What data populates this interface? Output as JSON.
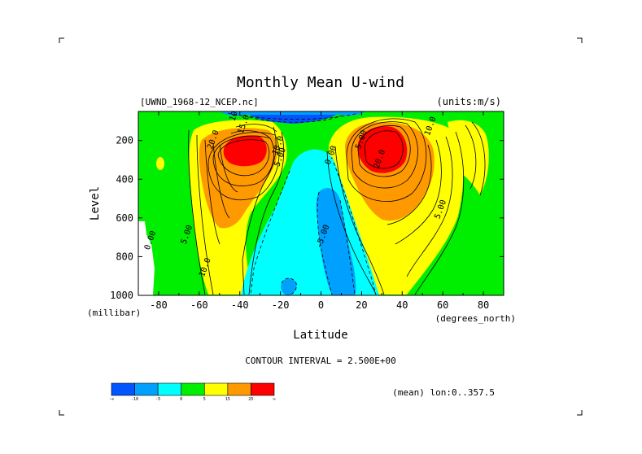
{
  "chart_data": {
    "type": "contour",
    "title": "Monthly Mean U-wind",
    "dataset_label": "[UWND_1968-12_NCEP.nc]",
    "units_label": "(units:m/s)",
    "xlabel": "Latitude",
    "xunit": "(degrees_north)",
    "ylabel": "Level",
    "yunit": "(millibar)",
    "xlim": [
      -90,
      90
    ],
    "ylim": [
      1000,
      50
    ],
    "y_inverted": true,
    "x_ticks": [
      -80,
      -60,
      -40,
      -20,
      0,
      20,
      40,
      60,
      80
    ],
    "y_ticks": [
      200,
      400,
      600,
      800,
      1000
    ],
    "contour_interval_text": "CONTOUR INTERVAL = 2.500E+00",
    "contour_interval": 2.5,
    "subset_text": "(mean) lon:0..357.5",
    "contour_labels": [
      {
        "text": "10.0",
        "lat": -41,
        "lev": 55
      },
      {
        "text": "15.0",
        "lat": -37,
        "lev": 120
      },
      {
        "text": "20.0",
        "lat": -52,
        "lev": 200
      },
      {
        "text": "10.0",
        "lat": -20,
        "lev": 230
      },
      {
        "text": "5.00",
        "lat": -19,
        "lev": 290
      },
      {
        "text": "0.00",
        "lat": -83,
        "lev": 720
      },
      {
        "text": "5.00",
        "lat": -65,
        "lev": 690
      },
      {
        "text": "10.0",
        "lat": -56,
        "lev": 860
      },
      {
        "text": "0.00",
        "lat": 6,
        "lev": 280
      },
      {
        "text": "-5.00",
        "lat": 2,
        "lev": 700
      },
      {
        "text": "5.00",
        "lat": 21,
        "lev": 200
      },
      {
        "text": "20.0",
        "lat": 30,
        "lev": 300
      },
      {
        "text": "10.0",
        "lat": 55,
        "lev": 130
      },
      {
        "text": "5.00",
        "lat": 60,
        "lev": 560
      }
    ],
    "colorbar": {
      "colors": [
        "#0055ff",
        "#00a0ff",
        "#00ffff",
        "#00ee00",
        "#ffff00",
        "#ff9900",
        "#ff0000"
      ],
      "boundary_labels": [
        "-∞",
        "-10",
        "-5",
        "0",
        "5",
        "15",
        "25",
        "∞"
      ]
    },
    "fill_colors": {
      "strong_easterly": "#0055ff",
      "easterly": "#00a0ff",
      "weak_easterly": "#00ffff",
      "weak_westerly": "#00ee00",
      "westerly": "#ffff00",
      "strong_westerly": "#ff9900",
      "jet_core": "#ff0000"
    }
  }
}
